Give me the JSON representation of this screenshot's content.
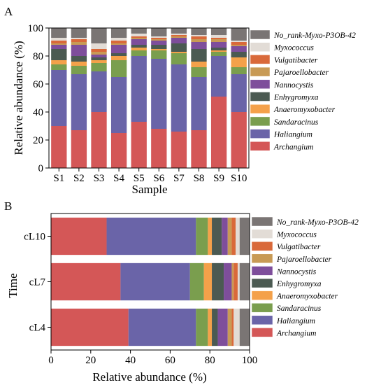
{
  "chart_data": [
    {
      "type": "bar",
      "orientation": "vertical",
      "stacked": true,
      "panel_label": "A",
      "title": "",
      "xlabel": "Sample",
      "ylabel": "Relative abundance (%)",
      "ylim": [
        0,
        100
      ],
      "yticks": [
        "0",
        "20",
        "40",
        "60",
        "80",
        "100"
      ],
      "grid": false,
      "legend_position": "right",
      "categories": [
        "S1",
        "S2",
        "S3",
        "S4",
        "S5",
        "S6",
        "S7",
        "S8",
        "S9",
        "S10"
      ],
      "series": [
        {
          "name": "Archangium",
          "color": "#d45757",
          "values": [
            30,
            27,
            40,
            25,
            33,
            28,
            26,
            27,
            51,
            40
          ]
        },
        {
          "name": "Haliangium",
          "color": "#6a64a8",
          "values": [
            40,
            40,
            29,
            40,
            47,
            50,
            48,
            38,
            29,
            27
          ]
        },
        {
          "name": "Sandaracinus",
          "color": "#7a9e4e",
          "values": [
            4,
            6,
            6,
            12,
            4,
            6,
            8,
            7,
            3,
            5
          ]
        },
        {
          "name": "Anaeromyxobacter",
          "color": "#f4a14a",
          "values": [
            3,
            3,
            2,
            3,
            2,
            1,
            1,
            4,
            1,
            7
          ]
        },
        {
          "name": "Enhygromyxa",
          "color": "#4b5a52",
          "values": [
            8,
            4,
            2,
            2,
            2,
            3,
            6,
            9,
            2,
            4
          ]
        },
        {
          "name": "Nannocystis",
          "color": "#7e4e9b",
          "values": [
            3,
            8,
            2,
            6,
            4,
            3,
            4,
            5,
            4,
            4
          ]
        },
        {
          "name": "Pajaroellobacter",
          "color": "#c89a55",
          "values": [
            1,
            2,
            2,
            1,
            1,
            1,
            1,
            2,
            2,
            1
          ]
        },
        {
          "name": "Vulgatibacter",
          "color": "#d9693a",
          "values": [
            2,
            2,
            2,
            2,
            1,
            1,
            1,
            2,
            1,
            2
          ]
        },
        {
          "name": "Myxococcus",
          "color": "#e2dcd6",
          "values": [
            2,
            1,
            4,
            2,
            2,
            1,
            1,
            1,
            2,
            1
          ]
        },
        {
          "name": "No_rank-Myxo-P3OB-42",
          "color": "#7a7574",
          "values": [
            7,
            7,
            11,
            7,
            4,
            6,
            4,
            5,
            5,
            9
          ]
        }
      ]
    },
    {
      "type": "bar",
      "orientation": "horizontal",
      "stacked": true,
      "panel_label": "B",
      "title": "",
      "xlabel": "Relative abundance (%)",
      "ylabel": "Time",
      "xlim": [
        0,
        100
      ],
      "xticks": [
        "0",
        "20",
        "40",
        "60",
        "80",
        "100"
      ],
      "grid": false,
      "legend_position": "right",
      "categories": [
        "cL10",
        "cL7",
        "cL4"
      ],
      "series": [
        {
          "name": "Archangium",
          "color": "#d45757",
          "values": [
            28,
            35,
            39
          ]
        },
        {
          "name": "Haliangium",
          "color": "#6a64a8",
          "values": [
            45,
            35,
            34
          ]
        },
        {
          "name": "Sandaracinus",
          "color": "#7a9e4e",
          "values": [
            6,
            7,
            6
          ]
        },
        {
          "name": "Anaeromyxobacter",
          "color": "#f4a14a",
          "values": [
            2,
            4,
            2
          ]
        },
        {
          "name": "Enhygromyxa",
          "color": "#4b5a52",
          "values": [
            5,
            6,
            3
          ]
        },
        {
          "name": "Nannocystis",
          "color": "#7e4e9b",
          "values": [
            3,
            4,
            5
          ]
        },
        {
          "name": "Pajaroellobacter",
          "color": "#c89a55",
          "values": [
            2,
            1,
            2
          ]
        },
        {
          "name": "Vulgatibacter",
          "color": "#d9693a",
          "values": [
            2,
            2,
            1
          ]
        },
        {
          "name": "Myxococcus",
          "color": "#e2dcd6",
          "values": [
            2,
            1,
            3
          ]
        },
        {
          "name": "No_rank-Myxo-P3OB-42",
          "color": "#7a7574",
          "values": [
            5,
            5,
            5
          ]
        }
      ]
    }
  ]
}
